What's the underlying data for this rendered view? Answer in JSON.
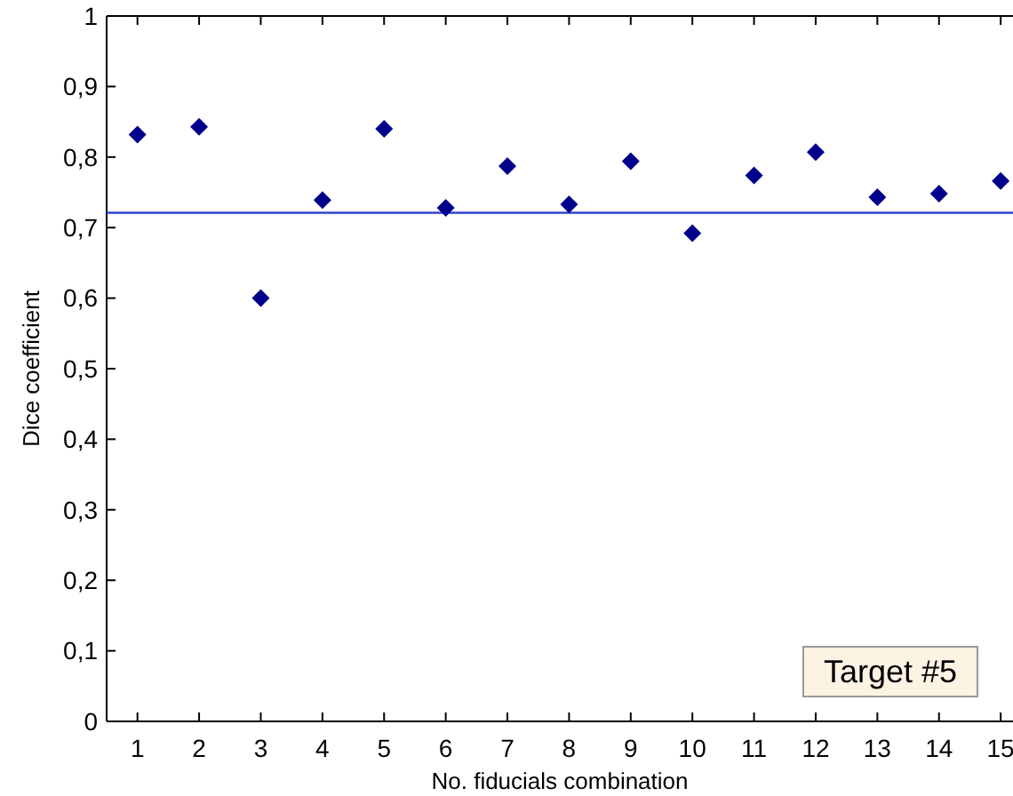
{
  "chart_data": {
    "type": "scatter",
    "xlabel": "No. fiducials combination",
    "ylabel": "Dice coefficient",
    "x": [
      1,
      2,
      3,
      4,
      5,
      6,
      7,
      8,
      9,
      10,
      11,
      12,
      13,
      14,
      15
    ],
    "series": [
      {
        "color": "#00008b",
        "values": [
          0.832,
          0.843,
          0.6,
          0.739,
          0.84,
          0.728,
          0.787,
          0.733,
          0.794,
          0.692,
          0.774,
          0.807,
          0.743,
          0.748,
          0.766
        ]
      }
    ],
    "marker": "diamond",
    "xlim": [
      0.5,
      15.2
    ],
    "ylim": [
      0,
      1
    ],
    "xticks": [
      1,
      2,
      3,
      4,
      5,
      6,
      7,
      8,
      9,
      10,
      11,
      12,
      13,
      14,
      15
    ],
    "yticks": [
      0,
      {
        "value": 0.1,
        "label": "0,1"
      },
      {
        "value": 0.2,
        "label": "0,2"
      },
      {
        "value": 0.3,
        "label": "0,3"
      },
      {
        "value": 0.4,
        "label": "0,4"
      },
      {
        "value": 0.5,
        "label": "0,5"
      },
      {
        "value": 0.6,
        "label": "0,6"
      },
      {
        "value": 0.7,
        "label": "0,7"
      },
      {
        "value": 0.8,
        "label": "0,8"
      },
      {
        "value": 0.9,
        "label": "0,9"
      },
      1
    ],
    "ref_lines": [
      {
        "axis": "y",
        "value": 0.721,
        "color": "#3344cc"
      }
    ],
    "annotations": [
      "Target #5"
    ],
    "grid": false
  }
}
